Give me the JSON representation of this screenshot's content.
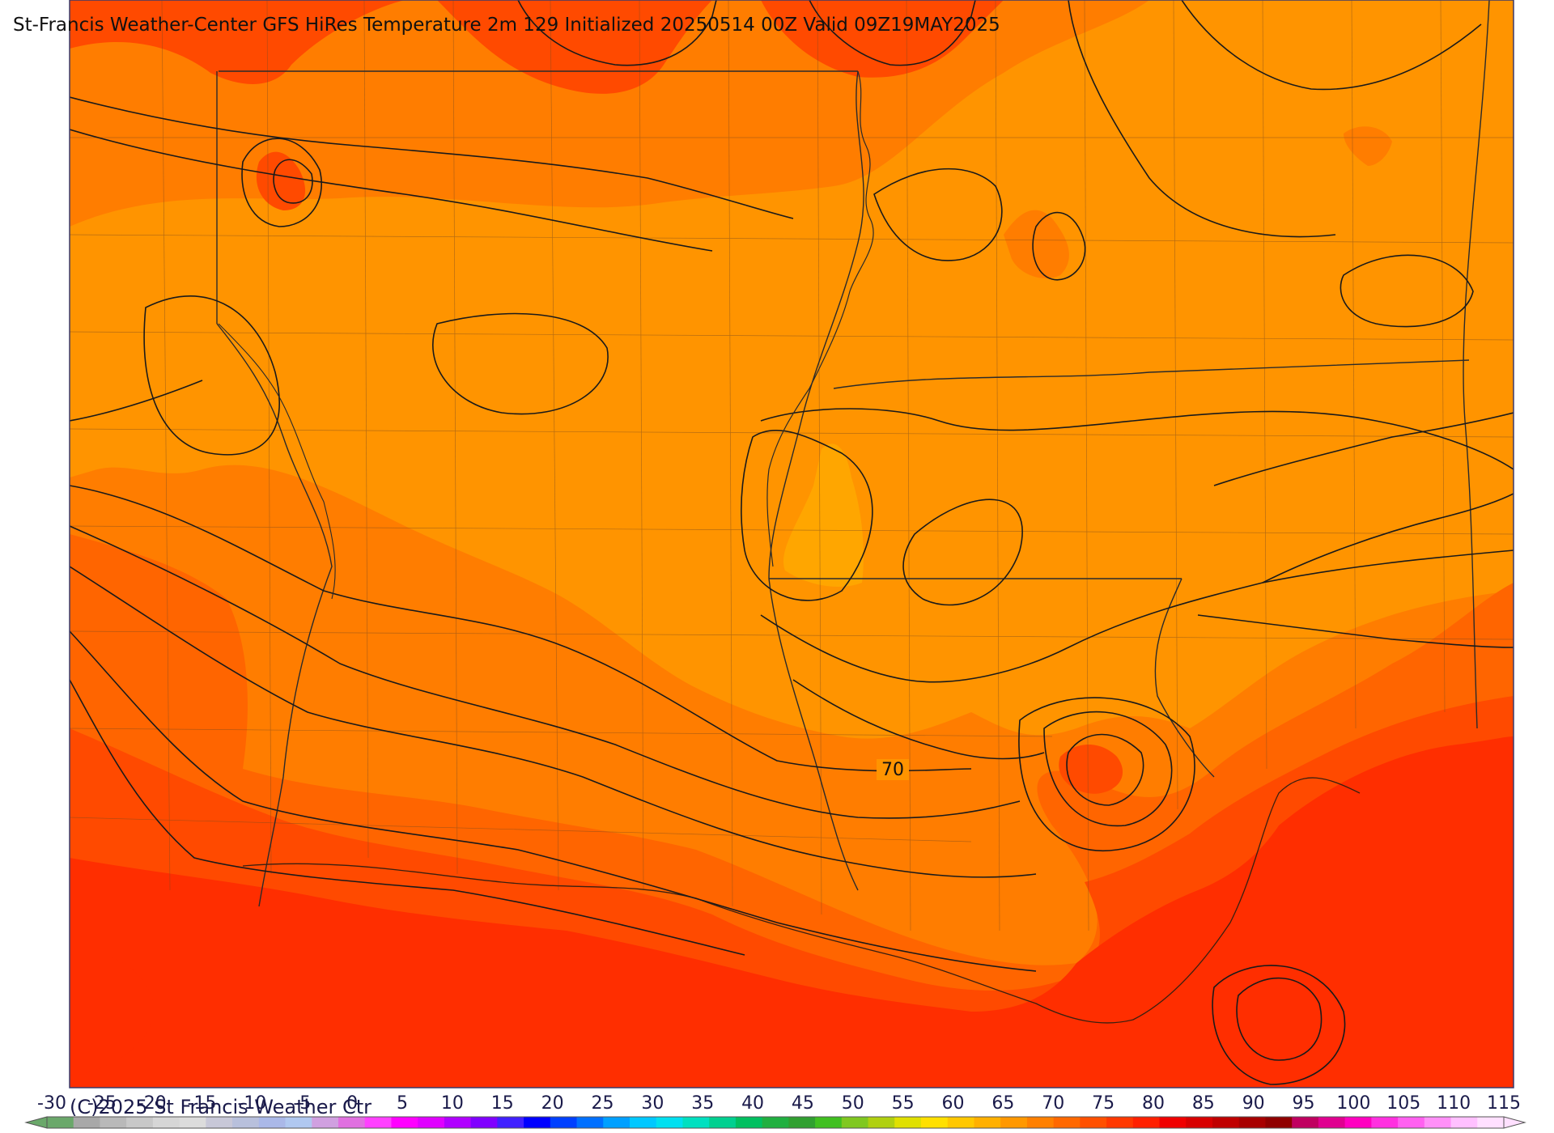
{
  "title": "St-Francis Weather-Center GFS HiRes Temperature 2m  129 Initialized 20250514 00Z Valid 09Z19MAY2025",
  "copyright": "(C)2025 St Francis Weather Ctr",
  "map": {
    "contour_label": "70",
    "colors": {
      "c60_65": "#ff9400",
      "c65_70": "#ff7d00",
      "c70_75": "#ff6500",
      "c75_80": "#ff4a00",
      "c80_85": "#ff2e00",
      "c55_60": "#ffa600",
      "boundary": "#6b4a2a",
      "contour": "#1a1a1a",
      "frame": "#3a3a6a"
    }
  },
  "colorbar": {
    "ticks": [
      "-30",
      "-25",
      "-20",
      "-15",
      "-10",
      "-5",
      "0",
      "5",
      "10",
      "15",
      "20",
      "25",
      "30",
      "35",
      "40",
      "45",
      "50",
      "55",
      "60",
      "65",
      "70",
      "75",
      "80",
      "85",
      "90",
      "95",
      "100",
      "105",
      "110",
      "115"
    ],
    "colors": [
      "#6aa86a",
      "#a8a8a8",
      "#b9b9b9",
      "#c8c8c8",
      "#d6d6d6",
      "#dcdcdc",
      "#c8c8d8",
      "#b8c0dc",
      "#aab8e8",
      "#b0c8f0",
      "#d0a0e0",
      "#e070e0",
      "#ff40ff",
      "#ff00ff",
      "#e000ff",
      "#b000ff",
      "#8000ff",
      "#4020ff",
      "#0000ff",
      "#0040ff",
      "#0070ff",
      "#00a0ff",
      "#00c8ff",
      "#00e0f0",
      "#00e0c0",
      "#00d090",
      "#00c060",
      "#20b040",
      "#30a030",
      "#40c020",
      "#80c820",
      "#b0d010",
      "#e0e000",
      "#ffe000",
      "#ffc800",
      "#ffb000",
      "#ff9800",
      "#ff8000",
      "#ff6800",
      "#ff5000",
      "#ff3800",
      "#ff2000",
      "#f00000",
      "#d80000",
      "#c00000",
      "#a80000",
      "#900000",
      "#c00060",
      "#e00090",
      "#ff00c0",
      "#ff30e0",
      "#ff60f0",
      "#ff90f8",
      "#ffc0ff",
      "#ffe0ff"
    ]
  }
}
